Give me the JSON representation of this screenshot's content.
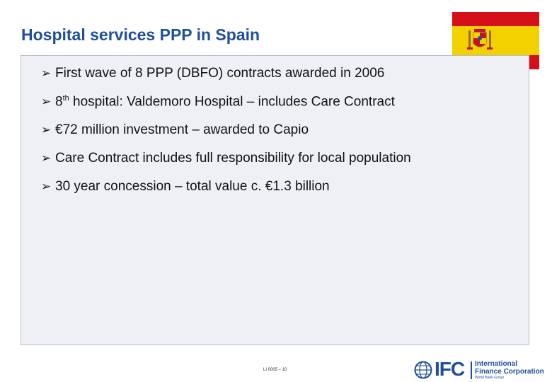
{
  "slide": {
    "title": "Hospital services PPP in Spain"
  },
  "bullets": [
    {
      "text": "First wave of 8 PPP (DBFO) contracts awarded in 2006"
    },
    {
      "pre": "8",
      "sup": "th",
      "post": " hospital: Valdemoro Hospital – includes Care Contract"
    },
    {
      "text": "€72 million investment – awarded to Capio"
    },
    {
      "text": "Care Contract includes full responsibility for local population"
    },
    {
      "text": "30 year concession – total value c. €1.3 billion"
    }
  ],
  "footer": {
    "code": "LI 0005 – 10"
  },
  "logo": {
    "mark": "IFC",
    "name_line1": "International",
    "name_line2": "Finance Corporation",
    "subtitle": "World Bank Group"
  },
  "colors": {
    "title_blue": "#1f4f9c",
    "box_bg": "#eef0f6",
    "flag_red": "#d6101a",
    "flag_yellow": "#f3d000"
  },
  "icons": {
    "bullet": "arrowhead-bullet-icon",
    "flag": "spain-flag-icon",
    "globe": "globe-icon"
  }
}
